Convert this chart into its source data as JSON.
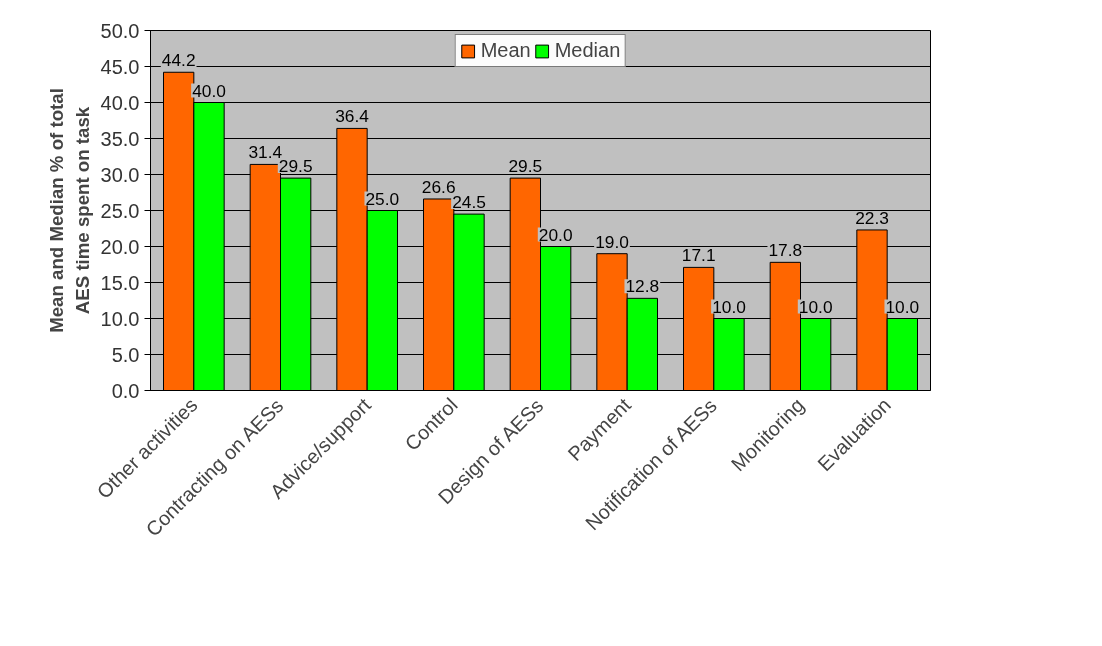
{
  "chart_data": {
    "type": "bar",
    "ylabel": "Mean and Median % of total AES time spent on task",
    "categories": [
      "Other activities",
      "Contracting on AESs",
      "Advice/support",
      "Control",
      "Design of AESs",
      "Payment",
      "Notification of AESs",
      "Monitoring",
      "Evaluation"
    ],
    "series": [
      {
        "name": "Mean",
        "color": "#ff6600",
        "values": [
          44.2,
          31.4,
          36.4,
          26.6,
          29.5,
          19.0,
          17.1,
          17.8,
          22.3
        ],
        "value_labels": [
          "44.2",
          "31.4",
          "36.4",
          "26.6",
          "29.5",
          "19.0",
          "17.1",
          "17.8",
          "22.3"
        ]
      },
      {
        "name": "Median",
        "color": "#00ff00",
        "values": [
          40.0,
          29.5,
          25.0,
          24.5,
          20.0,
          12.8,
          10.0,
          10.0,
          10.0
        ],
        "value_labels": [
          "40.0",
          "29.5",
          "25.0",
          "24.5",
          "20.0",
          "12.8",
          "10.0",
          "10.0",
          "10.0"
        ]
      }
    ],
    "ylim": [
      0,
      50
    ],
    "yticks": [
      {
        "value": 0,
        "label": "0.0"
      },
      {
        "value": 5,
        "label": "5.0"
      },
      {
        "value": 10,
        "label": "10.0"
      },
      {
        "value": 15,
        "label": "15.0"
      },
      {
        "value": 20,
        "label": "20.0"
      },
      {
        "value": 25,
        "label": "25.0"
      },
      {
        "value": 30,
        "label": "30.0"
      },
      {
        "value": 35,
        "label": "35.0"
      },
      {
        "value": 40,
        "label": "40.0"
      },
      {
        "value": 45,
        "label": "45.0"
      },
      {
        "value": 50,
        "label": "50.0"
      }
    ],
    "grid": "y",
    "legend": "top"
  }
}
